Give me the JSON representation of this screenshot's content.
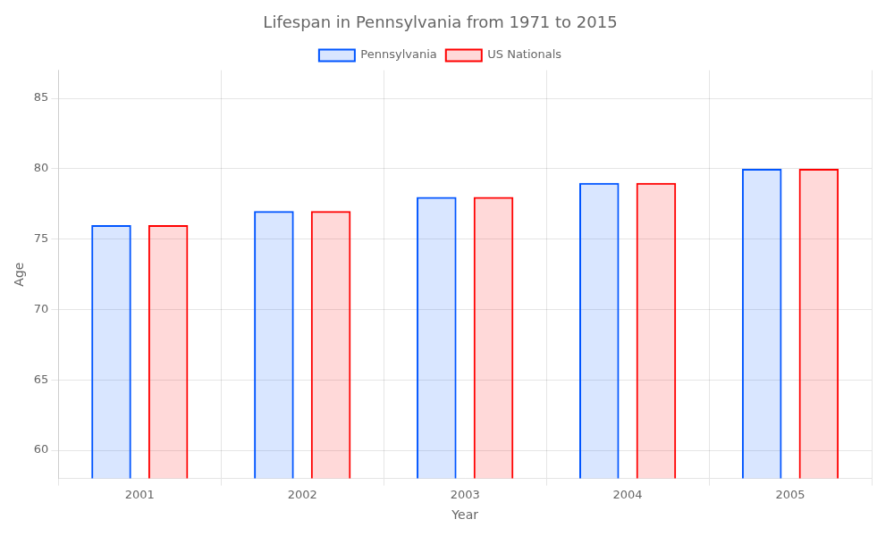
{
  "chart_data": {
    "type": "bar",
    "title": "Lifespan in Pennsylvania from 1971 to 2015",
    "x_label": "Year",
    "y_label": "Age",
    "categories": [
      "2001",
      "2002",
      "2003",
      "2004",
      "2005"
    ],
    "series": [
      {
        "name": "Pennsylvania",
        "color": "#0055ff",
        "values": [
          76,
          77,
          78,
          79,
          80
        ]
      },
      {
        "name": "US Nationals",
        "color": "#ff0000",
        "values": [
          76,
          77,
          78,
          79,
          80
        ]
      }
    ],
    "ylim": [
      58,
      87
    ],
    "yticks": [
      60,
      65,
      70,
      75,
      80,
      85
    ],
    "grid": true,
    "legend": "top"
  }
}
